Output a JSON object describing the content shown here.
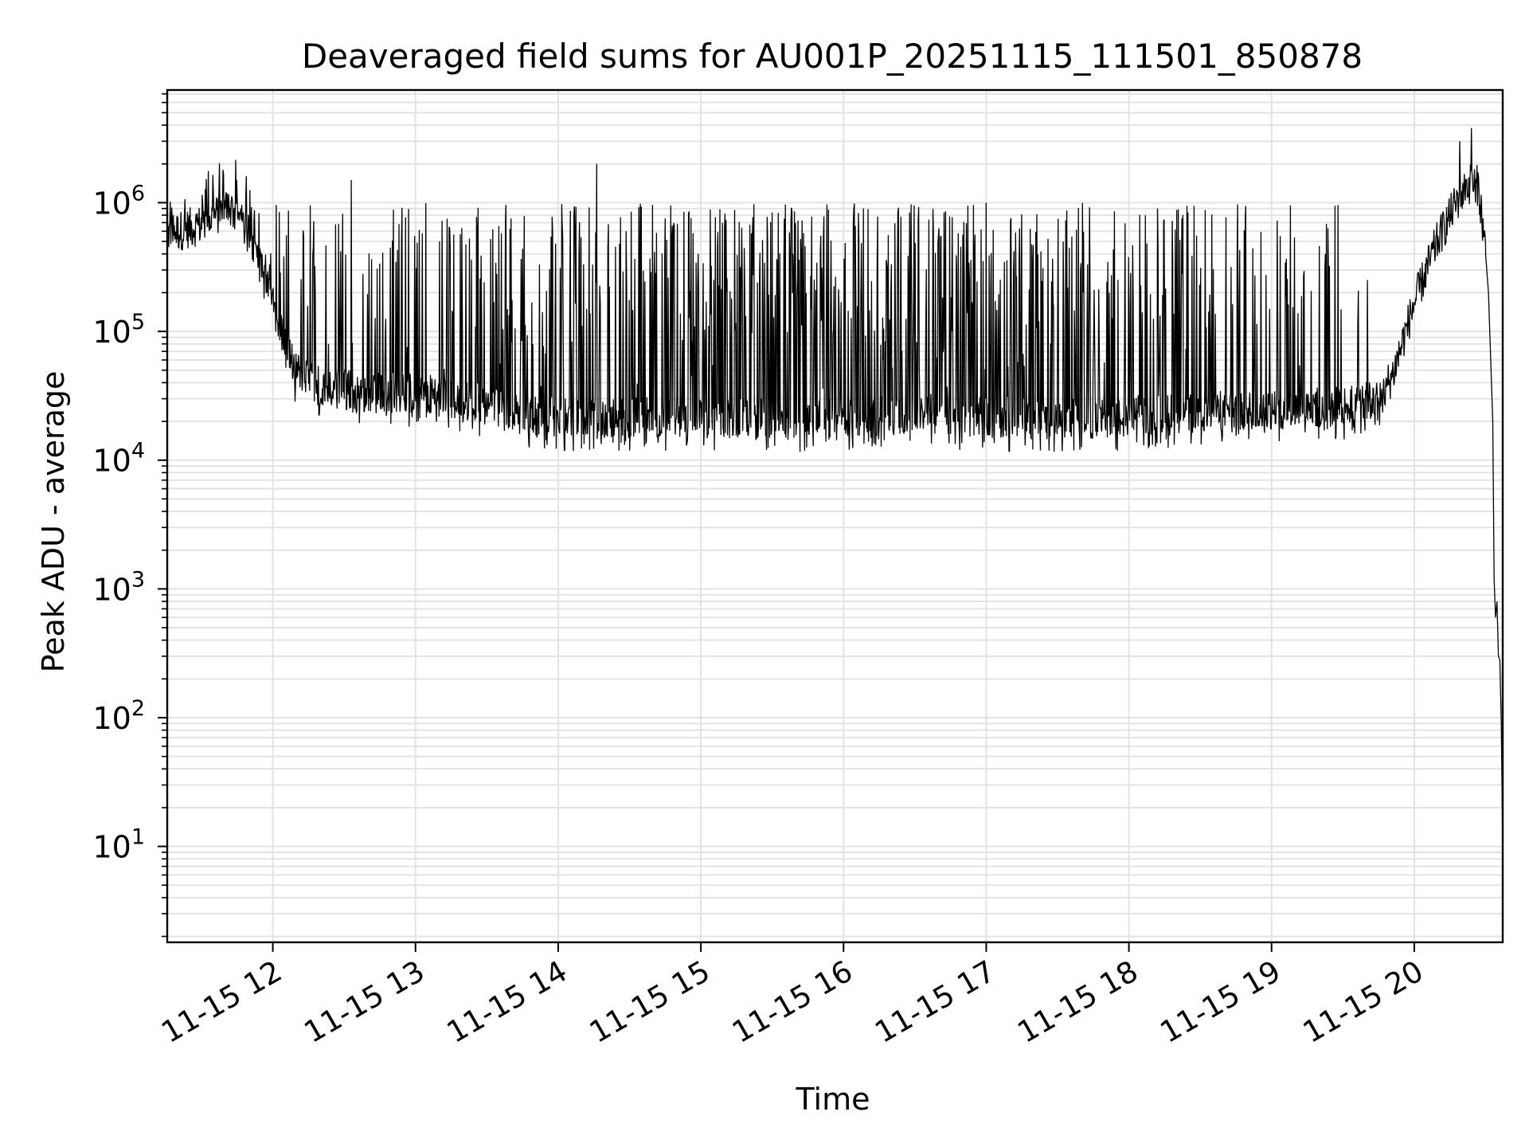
{
  "chart_data": {
    "type": "line",
    "title": "Deaveraged field sums for AU001P_20251115_111501_850878",
    "xlabel": "Time",
    "ylabel": "Peak ADU - average",
    "yscale": "log",
    "xlim": [
      11.26,
      20.62
    ],
    "ylim": [
      1.8,
      7500000
    ],
    "grid": true,
    "line_color": "#000000",
    "grid_color": "#e3e3e3",
    "x_ticks": [
      {
        "value": 12,
        "label": "11-15 12"
      },
      {
        "value": 13,
        "label": "11-15 13"
      },
      {
        "value": 14,
        "label": "11-15 14"
      },
      {
        "value": 15,
        "label": "11-15 15"
      },
      {
        "value": 16,
        "label": "11-15 16"
      },
      {
        "value": 17,
        "label": "11-15 17"
      },
      {
        "value": 18,
        "label": "11-15 18"
      },
      {
        "value": 19,
        "label": "11-15 19"
      },
      {
        "value": 20,
        "label": "11-15 20"
      }
    ],
    "y_ticks": [
      {
        "value": 10,
        "base": "10",
        "exp": "1"
      },
      {
        "value": 100,
        "base": "10",
        "exp": "2"
      },
      {
        "value": 1000,
        "base": "10",
        "exp": "3"
      },
      {
        "value": 10000,
        "base": "10",
        "exp": "4"
      },
      {
        "value": 100000,
        "base": "10",
        "exp": "5"
      },
      {
        "value": 1000000,
        "base": "10",
        "exp": "6"
      }
    ],
    "baseline_profile": [
      [
        11.26,
        550000
      ],
      [
        11.5,
        650000
      ],
      [
        11.7,
        900000
      ],
      [
        11.85,
        500000
      ],
      [
        12.0,
        150000
      ],
      [
        12.15,
        50000
      ],
      [
        12.3,
        38000
      ],
      [
        12.6,
        33000
      ],
      [
        13.0,
        32000
      ],
      [
        13.4,
        28000
      ],
      [
        13.8,
        22000
      ],
      [
        14.2,
        20000
      ],
      [
        14.6,
        21000
      ],
      [
        15.0,
        21000
      ],
      [
        15.5,
        20000
      ],
      [
        16.0,
        21000
      ],
      [
        16.5,
        22000
      ],
      [
        17.0,
        21000
      ],
      [
        17.5,
        20000
      ],
      [
        18.0,
        21000
      ],
      [
        18.5,
        23000
      ],
      [
        19.0,
        24000
      ],
      [
        19.5,
        25000
      ],
      [
        19.75,
        28000
      ],
      [
        19.85,
        45000
      ],
      [
        20.0,
        160000
      ],
      [
        20.15,
        450000
      ],
      [
        20.3,
        1000000
      ],
      [
        20.4,
        1400000
      ],
      [
        20.45,
        1300000
      ],
      [
        20.5,
        400000
      ]
    ],
    "spike_ceiling": 1000000,
    "spike_band": [
      12.0,
      19.8
    ],
    "peak_spikes": [
      {
        "x": 11.65,
        "y": 1800000
      },
      {
        "x": 12.55,
        "y": 1500000
      },
      {
        "x": 14.27,
        "y": 2000000
      },
      {
        "x": 20.32,
        "y": 3000000
      },
      {
        "x": 20.36,
        "y": 1500000
      },
      {
        "x": 20.4,
        "y": 3800000
      },
      {
        "x": 20.43,
        "y": 1000000
      }
    ],
    "tail": [
      [
        20.5,
        400000
      ],
      [
        20.52,
        200000
      ],
      [
        20.55,
        20000
      ],
      [
        20.56,
        1200
      ],
      [
        20.57,
        600
      ],
      [
        20.58,
        800
      ],
      [
        20.59,
        300
      ],
      [
        20.6,
        280
      ],
      [
        20.61,
        90
      ],
      [
        20.615,
        30
      ],
      [
        20.62,
        8
      ],
      [
        20.62,
        4
      ]
    ]
  }
}
